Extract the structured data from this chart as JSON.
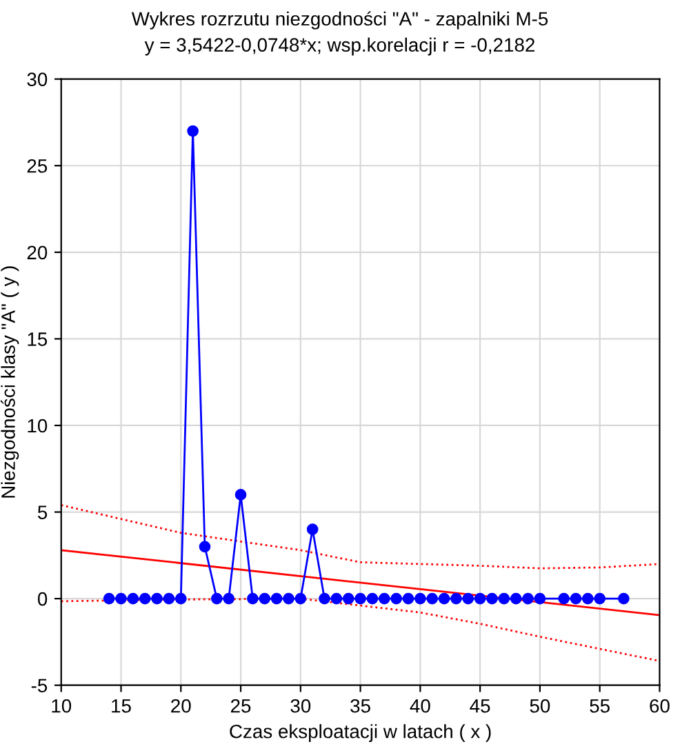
{
  "chart_data": {
    "type": "line",
    "title": "Wykres rozrzutu niezgodności \"A\" - zapalniki M-5",
    "subtitle": "y = 3,5422-0,0748*x; wsp.korelacji r = -0,2182",
    "xlabel": "Czas eksploatacji w latach ( x )",
    "ylabel": "Niezgodności klasy \"A\" ( y )",
    "xlim": [
      10,
      60
    ],
    "ylim": [
      -5,
      30
    ],
    "xticks": [
      10,
      15,
      20,
      25,
      30,
      35,
      40,
      45,
      50,
      55,
      60
    ],
    "yticks": [
      -5,
      0,
      5,
      10,
      15,
      20,
      25,
      30
    ],
    "grid": true,
    "series": [
      {
        "color": "#0000ff",
        "marker": "circle",
        "line_style": "solid",
        "x": [
          14,
          15,
          16,
          17,
          18,
          19,
          20,
          21,
          22,
          23,
          24,
          25,
          26,
          27,
          28,
          29,
          30,
          31,
          32,
          33,
          34,
          35,
          36,
          37,
          38,
          39,
          40,
          41,
          42,
          43,
          44,
          45,
          46,
          47,
          48,
          49,
          50,
          52,
          53,
          54,
          55,
          57
        ],
        "values": [
          0,
          0,
          0,
          0,
          0,
          0,
          0,
          27,
          3,
          0,
          0,
          6,
          0,
          0,
          0,
          0,
          0,
          4,
          0,
          0,
          0,
          0,
          0,
          0,
          0,
          0,
          0,
          0,
          0,
          0,
          0,
          0,
          0,
          0,
          0,
          0,
          0,
          0,
          0,
          0,
          0,
          0
        ]
      },
      {
        "color": "#ff0000",
        "marker": "none",
        "line_style": "solid",
        "x": [
          10,
          60
        ],
        "values": [
          2.8,
          -0.95
        ]
      },
      {
        "color": "#ff0000",
        "marker": "none",
        "line_style": "dotted",
        "x": [
          10,
          20,
          30,
          35,
          40,
          45,
          50,
          55,
          60
        ],
        "values": [
          5.4,
          3.8,
          2.8,
          2.1,
          2.0,
          1.9,
          1.75,
          1.8,
          2.0
        ]
      },
      {
        "color": "#ff0000",
        "marker": "none",
        "line_style": "dotted",
        "x": [
          10,
          20,
          30,
          35,
          40,
          45,
          50,
          55,
          60
        ],
        "values": [
          -0.15,
          -0.05,
          0,
          -0.4,
          -0.8,
          -1.45,
          -2.2,
          -2.9,
          -3.6
        ]
      }
    ]
  }
}
